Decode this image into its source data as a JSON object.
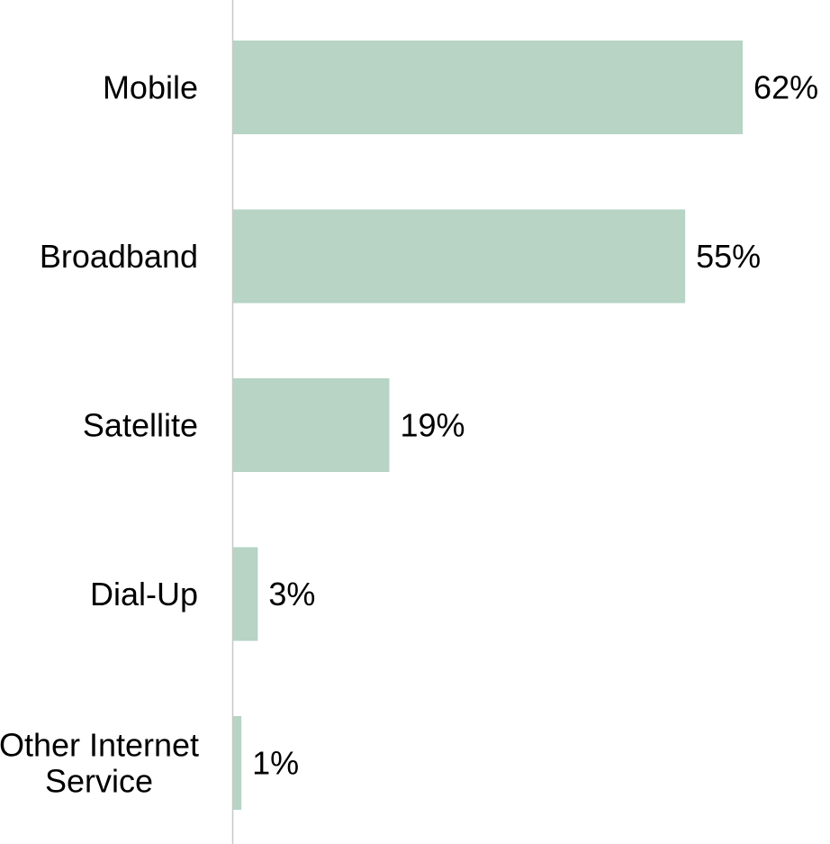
{
  "chart_data": {
    "type": "bar",
    "orientation": "horizontal",
    "categories": [
      "Mobile",
      "Broadband",
      "Satellite",
      "Dial-Up",
      "Other Internet Service"
    ],
    "category_lines": [
      [
        "Mobile"
      ],
      [
        "Broadband"
      ],
      [
        "Satellite"
      ],
      [
        "Dial-Up"
      ],
      [
        "Other Internet",
        "Service"
      ]
    ],
    "values": [
      62,
      55,
      19,
      3,
      1
    ],
    "value_labels": [
      "62%",
      "55%",
      "19%",
      "3%",
      "1%"
    ],
    "unit": "%",
    "title": "",
    "xlabel": "",
    "ylabel": "",
    "xlim": [
      0,
      100
    ],
    "grid": false,
    "legend": "none",
    "bar_color": "#b7d4c5",
    "axis_color": "#c8c8c8"
  }
}
